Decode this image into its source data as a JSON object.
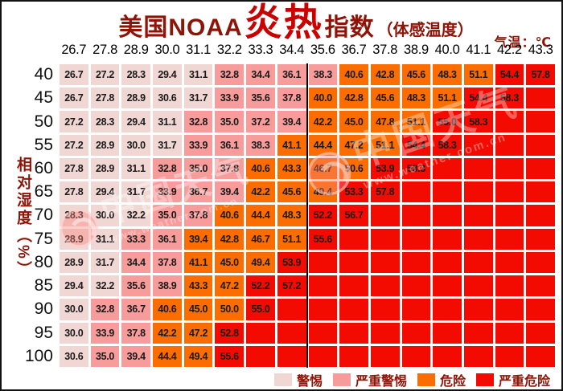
{
  "title": {
    "part1": "美国NOAA",
    "hot": "炎热",
    "part2": "指数",
    "part3": "（体感温度）"
  },
  "unit_label": "气温：℃",
  "y_label": "相对湿度（%）",
  "watermark": {
    "name": "中国天气",
    "url": "www.weather.com.cn"
  },
  "legend": [
    {
      "label": "警惕",
      "level": "L",
      "color": "#f1d7d3"
    },
    {
      "label": "严重警惕",
      "level": "P",
      "color": "#f89c9b"
    },
    {
      "label": "危险",
      "level": "O",
      "color": "#fb6c01"
    },
    {
      "label": "严重危险",
      "level": "R",
      "color": "#f30b01"
    }
  ],
  "chart_data": {
    "type": "heatmap",
    "title": "美国NOAA炎热指数（体感温度）",
    "xlabel": "气温：℃",
    "ylabel": "相对湿度（%）",
    "x_categories": [
      "26.7",
      "27.8",
      "28.9",
      "30.0",
      "31.1",
      "32.2",
      "33.3",
      "34.4",
      "35.6",
      "36.7",
      "37.8",
      "38.9",
      "40.0",
      "41.1",
      "42.2",
      "43.3"
    ],
    "y_categories": [
      "40",
      "45",
      "50",
      "55",
      "60",
      "65",
      "70",
      "75",
      "80",
      "85",
      "90",
      "95",
      "100"
    ],
    "divider_after_x_index": 7,
    "level_colors": {
      "L": "#f1d7d3",
      "P": "#f89c9b",
      "O": "#fb6c01",
      "R": "#f30b01"
    },
    "level_labels": {
      "L": "警惕",
      "P": "严重警惕",
      "O": "危险",
      "R": "严重危险"
    },
    "values": [
      [
        "26.7",
        "27.2",
        "28.3",
        "29.4",
        "31.1",
        "32.8",
        "34.4",
        "36.1",
        "38.3",
        "40.6",
        "42.8",
        "45.6",
        "48.3",
        "51.1",
        "54.4",
        "57.8"
      ],
      [
        "26.7",
        "27.8",
        "28.9",
        "30.6",
        "31.7",
        "33.9",
        "35.6",
        "37.8",
        "40.0",
        "42.8",
        "45.6",
        "48.3",
        "51.1",
        "54.4",
        "58.3",
        ""
      ],
      [
        "27.2",
        "28.3",
        "29.4",
        "31.1",
        "32.8",
        "35.0",
        "37.2",
        "39.4",
        "42.2",
        "45.0",
        "47.8",
        "51.1",
        "55.0",
        "58.3",
        "",
        ""
      ],
      [
        "27.2",
        "28.9",
        "30.0",
        "31.7",
        "33.9",
        "36.1",
        "38.3",
        "41.1",
        "44.4",
        "47.2",
        "51.1",
        "54.4",
        "58.3",
        "",
        "",
        ""
      ],
      [
        "27.8",
        "28.9",
        "31.1",
        "32.8",
        "35.0",
        "37.8",
        "40.6",
        "43.3",
        "46.7",
        "50.6",
        "53.9",
        "58.3",
        "",
        "",
        "",
        ""
      ],
      [
        "27.8",
        "29.4",
        "31.7",
        "33.9",
        "36.7",
        "39.4",
        "42.2",
        "45.6",
        "49.4",
        "53.3",
        "57.8",
        "",
        "",
        "",
        "",
        ""
      ],
      [
        "28.3",
        "30.0",
        "32.2",
        "35.0",
        "37.8",
        "40.6",
        "44.4",
        "48.3",
        "52.2",
        "56.7",
        "",
        "",
        "",
        "",
        "",
        ""
      ],
      [
        "28.9",
        "31.1",
        "33.3",
        "36.1",
        "39.4",
        "42.8",
        "46.7",
        "51.1",
        "55.6",
        "",
        "",
        "",
        "",
        "",
        "",
        ""
      ],
      [
        "28.9",
        "31.7",
        "34.4",
        "37.8",
        "41.1",
        "45.0",
        "49.4",
        "53.9",
        "",
        "",
        "",
        "",
        "",
        "",
        "",
        ""
      ],
      [
        "29.4",
        "32.2",
        "35.6",
        "38.9",
        "43.3",
        "47.2",
        "52.2",
        "57.2",
        "",
        "",
        "",
        "",
        "",
        "",
        "",
        ""
      ],
      [
        "30.0",
        "32.8",
        "36.7",
        "40.6",
        "45.0",
        "50.0",
        "55.0",
        "",
        "",
        "",
        "",
        "",
        "",
        "",
        "",
        ""
      ],
      [
        "30.0",
        "33.9",
        "37.8",
        "42.2",
        "47.2",
        "52.8",
        "",
        "",
        "",
        "",
        "",
        "",
        "",
        "",
        "",
        ""
      ],
      [
        "30.6",
        "35.0",
        "39.4",
        "44.4",
        "49.4",
        "55.6",
        "",
        "",
        "",
        "",
        "",
        "",
        "",
        "",
        "",
        ""
      ]
    ],
    "levels": [
      [
        "L",
        "L",
        "L",
        "L",
        "L",
        "P",
        "P",
        "P",
        "P",
        "O",
        "O",
        "O",
        "O",
        "O",
        "R",
        "R"
      ],
      [
        "L",
        "L",
        "L",
        "L",
        "L",
        "P",
        "P",
        "P",
        "O",
        "O",
        "O",
        "O",
        "O",
        "R",
        "R",
        "R"
      ],
      [
        "L",
        "L",
        "L",
        "L",
        "P",
        "P",
        "P",
        "P",
        "O",
        "O",
        "O",
        "O",
        "R",
        "R",
        "R",
        "R"
      ],
      [
        "L",
        "L",
        "L",
        "L",
        "P",
        "P",
        "P",
        "O",
        "O",
        "O",
        "O",
        "R",
        "R",
        "R",
        "R",
        "R"
      ],
      [
        "L",
        "L",
        "L",
        "P",
        "P",
        "P",
        "O",
        "O",
        "O",
        "O",
        "R",
        "R",
        "R",
        "R",
        "R",
        "R"
      ],
      [
        "L",
        "L",
        "L",
        "P",
        "P",
        "P",
        "O",
        "O",
        "O",
        "R",
        "R",
        "R",
        "R",
        "R",
        "R",
        "R"
      ],
      [
        "L",
        "L",
        "L",
        "P",
        "P",
        "O",
        "O",
        "O",
        "R",
        "R",
        "R",
        "R",
        "R",
        "R",
        "R",
        "R"
      ],
      [
        "L",
        "L",
        "P",
        "P",
        "O",
        "O",
        "O",
        "O",
        "R",
        "R",
        "R",
        "R",
        "R",
        "R",
        "R",
        "R"
      ],
      [
        "L",
        "L",
        "P",
        "P",
        "O",
        "O",
        "O",
        "R",
        "R",
        "R",
        "R",
        "R",
        "R",
        "R",
        "R",
        "R"
      ],
      [
        "L",
        "L",
        "P",
        "P",
        "O",
        "O",
        "R",
        "R",
        "R",
        "R",
        "R",
        "R",
        "R",
        "R",
        "R",
        "R"
      ],
      [
        "L",
        "P",
        "P",
        "O",
        "O",
        "O",
        "R",
        "R",
        "R",
        "R",
        "R",
        "R",
        "R",
        "R",
        "R",
        "R"
      ],
      [
        "L",
        "P",
        "P",
        "O",
        "O",
        "R",
        "R",
        "R",
        "R",
        "R",
        "R",
        "R",
        "R",
        "R",
        "R",
        "R"
      ],
      [
        "L",
        "P",
        "P",
        "O",
        "O",
        "R",
        "R",
        "R",
        "R",
        "R",
        "R",
        "R",
        "R",
        "R",
        "R",
        "R"
      ]
    ]
  }
}
